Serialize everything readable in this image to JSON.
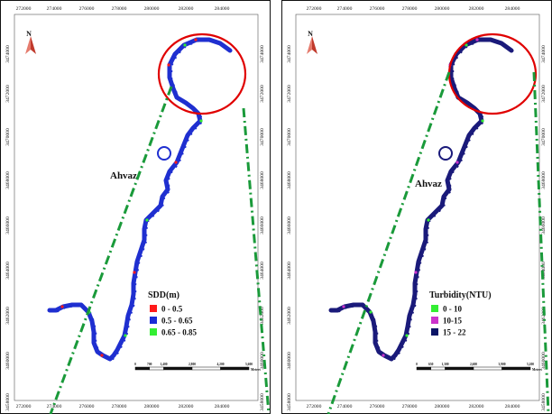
{
  "maps": [
    {
      "id": "sdd",
      "x_ticks": [
        "272000",
        "274000",
        "276000",
        "278000",
        "280000",
        "282000",
        "284000"
      ],
      "y_ticks": [
        "3474000",
        "3472000",
        "3470000",
        "3468000",
        "3466000",
        "3464000",
        "3462000",
        "3460000",
        "3458000"
      ],
      "city_label": "Ahvaz",
      "north_label": "N",
      "legend": {
        "title": "SDD(m)",
        "items": [
          {
            "label": "0 - 0.5",
            "color": "#ff1a1a"
          },
          {
            "label": "0.5 - 0.65",
            "color": "#1a2bd6"
          },
          {
            "label": "0.65 - 0.85",
            "color": "#33ee33"
          }
        ]
      },
      "scale_bar": {
        "labels": [
          "0",
          "700",
          "1,400",
          "2,800",
          "4,200",
          "5,600"
        ],
        "unit": "Meters"
      },
      "river_color": "#1f2fd0"
    },
    {
      "id": "turbidity",
      "x_ticks": [
        "272000",
        "274000",
        "276000",
        "278000",
        "280000",
        "282000",
        "284000"
      ],
      "y_ticks": [
        "3474000",
        "3472000",
        "3470000",
        "3468000",
        "3466000",
        "3464000",
        "3462000",
        "3460000",
        "3458000"
      ],
      "city_label": "Ahvaz",
      "north_label": "N",
      "legend": {
        "title": "Turbidity(NTU)",
        "items": [
          {
            "label": "0 - 10",
            "color": "#33ee33"
          },
          {
            "label": "10-15",
            "color": "#cc33cc"
          },
          {
            "label": "15 - 22",
            "color": "#0b1466"
          }
        ]
      },
      "scale_bar": {
        "labels": [
          "0",
          "650",
          "1,300",
          "2,600",
          "3,900",
          "5,200"
        ],
        "unit": "Meters"
      },
      "river_color": "#1a1a7a"
    }
  ],
  "colors": {
    "highlight_circle": "#e00000",
    "guide_lines": "#1a9a3a"
  }
}
